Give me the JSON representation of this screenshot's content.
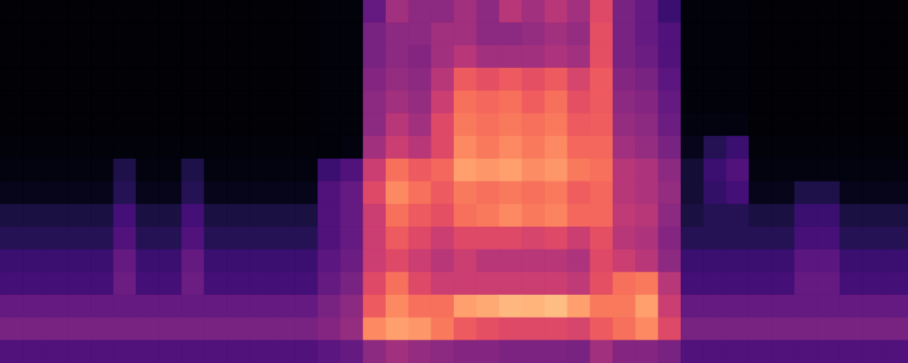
{
  "chart_data": {
    "type": "heatmap",
    "color": "magma",
    "tick_labels": false,
    "zlim": [
      0,
      100
    ],
    "values": [
      [
        1,
        1,
        1,
        1,
        1,
        1,
        1,
        1,
        1,
        1,
        1,
        1,
        1,
        1,
        2,
        2,
        30,
        45,
        40,
        40,
        45,
        40,
        50,
        45,
        50,
        45,
        60,
        35,
        30,
        20,
        2,
        2,
        2,
        1,
        1,
        1,
        1,
        1,
        1,
        1
      ],
      [
        1,
        1,
        1,
        1,
        1,
        1,
        1,
        1,
        1,
        1,
        1,
        1,
        1,
        1,
        2,
        2,
        35,
        40,
        40,
        45,
        45,
        40,
        40,
        42,
        45,
        42,
        62,
        35,
        30,
        25,
        2,
        2,
        2,
        1,
        1,
        1,
        1,
        1,
        1,
        1
      ],
      [
        1,
        1,
        1,
        1,
        1,
        1,
        1,
        1,
        1,
        1,
        1,
        1,
        1,
        1,
        2,
        2,
        35,
        40,
        38,
        45,
        50,
        45,
        45,
        45,
        48,
        45,
        62,
        35,
        32,
        25,
        2,
        2,
        2,
        1,
        1,
        1,
        1,
        1,
        1,
        1
      ],
      [
        1,
        1,
        1,
        1,
        1,
        1,
        1,
        1,
        1,
        1,
        1,
        1,
        1,
        1,
        2,
        2,
        38,
        42,
        40,
        50,
        65,
        62,
        65,
        62,
        65,
        58,
        65,
        38,
        35,
        28,
        2,
        2,
        2,
        1,
        1,
        1,
        1,
        1,
        1,
        1
      ],
      [
        1,
        1,
        1,
        1,
        1,
        1,
        1,
        1,
        1,
        1,
        1,
        1,
        1,
        1,
        2,
        2,
        40,
        45,
        42,
        55,
        70,
        68,
        70,
        66,
        70,
        62,
        65,
        40,
        38,
        30,
        2,
        2,
        2,
        1,
        1,
        1,
        1,
        1,
        1,
        1
      ],
      [
        1,
        1,
        1,
        1,
        1,
        1,
        1,
        1,
        1,
        1,
        1,
        1,
        1,
        1,
        2,
        2,
        40,
        50,
        45,
        60,
        72,
        70,
        72,
        70,
        72,
        65,
        66,
        42,
        40,
        32,
        3,
        3,
        3,
        1,
        1,
        1,
        1,
        1,
        1,
        1
      ],
      [
        2,
        2,
        2,
        2,
        2,
        2,
        2,
        2,
        2,
        2,
        2,
        2,
        2,
        2,
        2,
        3,
        45,
        55,
        50,
        60,
        75,
        72,
        75,
        72,
        75,
        68,
        68,
        45,
        42,
        35,
        5,
        15,
        20,
        2,
        2,
        2,
        2,
        2,
        2,
        2
      ],
      [
        3,
        3,
        3,
        3,
        3,
        13,
        3,
        3,
        13,
        3,
        3,
        3,
        3,
        3,
        20,
        25,
        55,
        70,
        65,
        68,
        80,
        78,
        80,
        76,
        78,
        72,
        70,
        50,
        48,
        40,
        10,
        20,
        25,
        3,
        3,
        3,
        3,
        3,
        3,
        3
      ],
      [
        5,
        5,
        5,
        5,
        5,
        15,
        5,
        5,
        15,
        5,
        5,
        5,
        5,
        5,
        25,
        30,
        60,
        75,
        70,
        65,
        72,
        70,
        72,
        70,
        72,
        66,
        68,
        50,
        48,
        42,
        10,
        18,
        22,
        5,
        5,
        13,
        13,
        5,
        5,
        5
      ],
      [
        12,
        12,
        12,
        12,
        12,
        22,
        12,
        12,
        22,
        12,
        12,
        12,
        12,
        12,
        25,
        30,
        55,
        70,
        65,
        62,
        70,
        72,
        75,
        72,
        74,
        68,
        68,
        52,
        50,
        40,
        12,
        15,
        15,
        12,
        12,
        20,
        20,
        12,
        12,
        12
      ],
      [
        15,
        15,
        15,
        15,
        15,
        25,
        15,
        15,
        25,
        15,
        15,
        15,
        15,
        15,
        25,
        30,
        55,
        65,
        60,
        55,
        60,
        60,
        60,
        58,
        60,
        55,
        62,
        50,
        48,
        38,
        15,
        15,
        15,
        15,
        15,
        23,
        23,
        15,
        15,
        15
      ],
      [
        20,
        20,
        20,
        20,
        20,
        30,
        20,
        20,
        30,
        20,
        20,
        20,
        20,
        20,
        28,
        32,
        55,
        60,
        55,
        50,
        55,
        50,
        50,
        50,
        50,
        48,
        60,
        55,
        50,
        40,
        20,
        20,
        20,
        20,
        20,
        28,
        28,
        20,
        20,
        20
      ],
      [
        22,
        22,
        22,
        22,
        22,
        32,
        22,
        22,
        32,
        22,
        22,
        22,
        22,
        22,
        30,
        35,
        60,
        70,
        60,
        55,
        55,
        55,
        55,
        55,
        55,
        52,
        62,
        70,
        72,
        50,
        22,
        22,
        22,
        22,
        22,
        30,
        30,
        22,
        22,
        22
      ],
      [
        30,
        30,
        30,
        30,
        30,
        30,
        30,
        30,
        30,
        30,
        30,
        30,
        30,
        30,
        35,
        40,
        65,
        75,
        70,
        70,
        80,
        82,
        85,
        84,
        86,
        80,
        72,
        72,
        80,
        55,
        30,
        30,
        30,
        30,
        30,
        30,
        30,
        30,
        30,
        30
      ],
      [
        35,
        35,
        35,
        35,
        35,
        35,
        35,
        35,
        35,
        35,
        35,
        35,
        35,
        35,
        38,
        42,
        75,
        80,
        78,
        72,
        65,
        62,
        60,
        60,
        60,
        58,
        65,
        70,
        75,
        60,
        35,
        35,
        35,
        35,
        35,
        35,
        35,
        35,
        35,
        35
      ],
      [
        25,
        25,
        25,
        25,
        25,
        25,
        25,
        25,
        25,
        25,
        25,
        25,
        25,
        25,
        28,
        30,
        40,
        45,
        42,
        40,
        38,
        38,
        36,
        36,
        36,
        35,
        45,
        38,
        38,
        35,
        25,
        25,
        25,
        25,
        25,
        25,
        25,
        25,
        25,
        25
      ]
    ]
  }
}
